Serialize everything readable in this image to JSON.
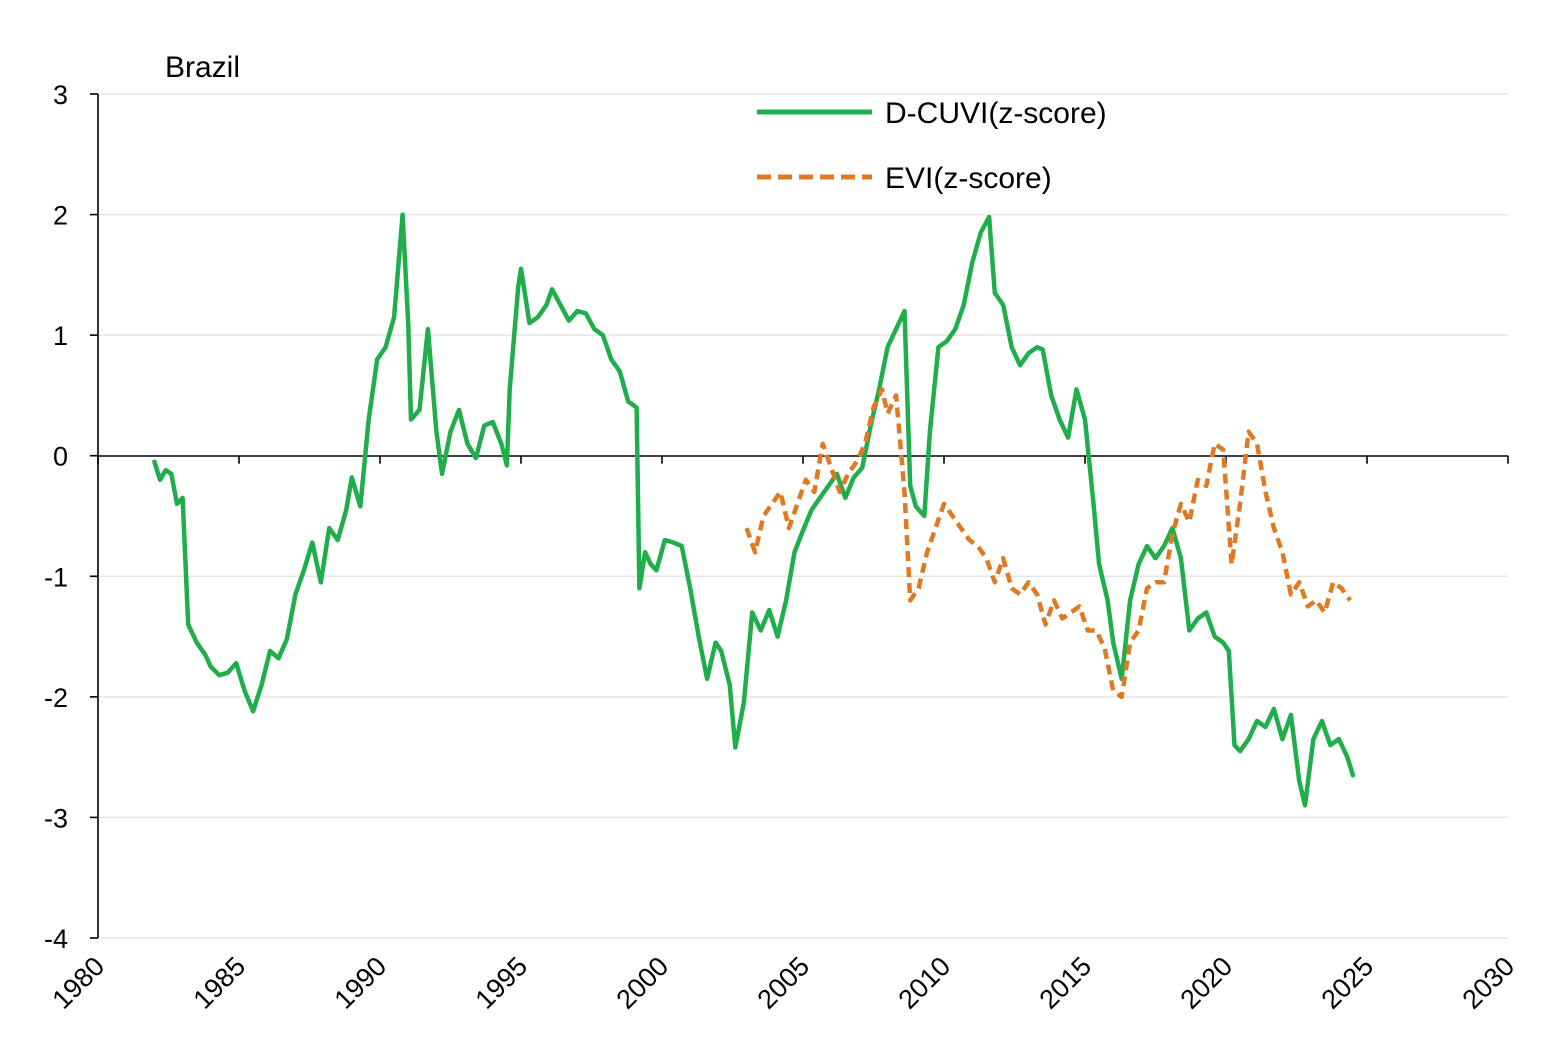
{
  "chart_data": {
    "type": "line",
    "title": "Brazil",
    "xlabel": "",
    "ylabel": "",
    "xlim": [
      1980,
      2030
    ],
    "ylim": [
      -4,
      3
    ],
    "x_ticks": [
      "1980",
      "1985",
      "1990",
      "1995",
      "2000",
      "2005",
      "2010",
      "2015",
      "2020",
      "2025",
      "2030"
    ],
    "y_ticks": [
      "3",
      "2",
      "1",
      "0",
      "-1",
      "-2",
      "-3",
      "-4"
    ],
    "grid": "horizontal",
    "legend": "top-center",
    "series": [
      {
        "name": "D-CUVI(z-score)",
        "color": "#1fae4b",
        "style": "solid",
        "points": [
          [
            1982.0,
            -0.05
          ],
          [
            1982.2,
            -0.2
          ],
          [
            1982.4,
            -0.12
          ],
          [
            1982.6,
            -0.15
          ],
          [
            1982.8,
            -0.4
          ],
          [
            1983.0,
            -0.35
          ],
          [
            1983.2,
            -1.4
          ],
          [
            1983.5,
            -1.55
          ],
          [
            1983.8,
            -1.65
          ],
          [
            1984.0,
            -1.75
          ],
          [
            1984.3,
            -1.82
          ],
          [
            1984.6,
            -1.8
          ],
          [
            1984.9,
            -1.72
          ],
          [
            1985.2,
            -1.95
          ],
          [
            1985.5,
            -2.12
          ],
          [
            1985.8,
            -1.9
          ],
          [
            1986.1,
            -1.62
          ],
          [
            1986.4,
            -1.68
          ],
          [
            1986.7,
            -1.52
          ],
          [
            1987.0,
            -1.15
          ],
          [
            1987.3,
            -0.95
          ],
          [
            1987.6,
            -0.72
          ],
          [
            1987.9,
            -1.05
          ],
          [
            1988.2,
            -0.6
          ],
          [
            1988.5,
            -0.7
          ],
          [
            1988.8,
            -0.45
          ],
          [
            1989.0,
            -0.18
          ],
          [
            1989.3,
            -0.42
          ],
          [
            1989.6,
            0.3
          ],
          [
            1989.9,
            0.8
          ],
          [
            1990.2,
            0.9
          ],
          [
            1990.5,
            1.15
          ],
          [
            1990.8,
            2.0
          ],
          [
            1991.0,
            1.1
          ],
          [
            1991.1,
            0.3
          ],
          [
            1991.4,
            0.38
          ],
          [
            1991.7,
            1.05
          ],
          [
            1992.0,
            0.2
          ],
          [
            1992.2,
            -0.15
          ],
          [
            1992.5,
            0.2
          ],
          [
            1992.8,
            0.38
          ],
          [
            1993.1,
            0.1
          ],
          [
            1993.4,
            -0.02
          ],
          [
            1993.7,
            0.25
          ],
          [
            1994.0,
            0.28
          ],
          [
            1994.3,
            0.1
          ],
          [
            1994.5,
            -0.08
          ],
          [
            1994.6,
            0.55
          ],
          [
            1994.9,
            1.4
          ],
          [
            1995.0,
            1.55
          ],
          [
            1995.3,
            1.1
          ],
          [
            1995.6,
            1.15
          ],
          [
            1995.9,
            1.25
          ],
          [
            1996.1,
            1.38
          ],
          [
            1996.4,
            1.25
          ],
          [
            1996.7,
            1.12
          ],
          [
            1997.0,
            1.2
          ],
          [
            1997.3,
            1.18
          ],
          [
            1997.6,
            1.05
          ],
          [
            1997.9,
            1.0
          ],
          [
            1998.2,
            0.8
          ],
          [
            1998.5,
            0.7
          ],
          [
            1998.8,
            0.45
          ],
          [
            1999.1,
            0.4
          ],
          [
            1999.2,
            -1.1
          ],
          [
            1999.4,
            -0.8
          ],
          [
            1999.6,
            -0.9
          ],
          [
            1999.8,
            -0.95
          ],
          [
            2000.1,
            -0.7
          ],
          [
            2000.4,
            -0.72
          ],
          [
            2000.7,
            -0.75
          ],
          [
            2001.0,
            -1.1
          ],
          [
            2001.3,
            -1.5
          ],
          [
            2001.6,
            -1.85
          ],
          [
            2001.9,
            -1.55
          ],
          [
            2002.1,
            -1.62
          ],
          [
            2002.4,
            -1.9
          ],
          [
            2002.6,
            -2.42
          ],
          [
            2002.9,
            -2.05
          ],
          [
            2003.2,
            -1.3
          ],
          [
            2003.5,
            -1.45
          ],
          [
            2003.8,
            -1.28
          ],
          [
            2004.1,
            -1.5
          ],
          [
            2004.4,
            -1.2
          ],
          [
            2004.7,
            -0.8
          ],
          [
            2005.0,
            -0.62
          ],
          [
            2005.3,
            -0.45
          ],
          [
            2005.6,
            -0.35
          ],
          [
            2005.9,
            -0.25
          ],
          [
            2006.2,
            -0.15
          ],
          [
            2006.5,
            -0.35
          ],
          [
            2006.8,
            -0.18
          ],
          [
            2007.1,
            -0.1
          ],
          [
            2007.4,
            0.25
          ],
          [
            2007.7,
            0.55
          ],
          [
            2008.0,
            0.9
          ],
          [
            2008.3,
            1.05
          ],
          [
            2008.6,
            1.2
          ],
          [
            2008.8,
            -0.25
          ],
          [
            2009.0,
            -0.42
          ],
          [
            2009.3,
            -0.5
          ],
          [
            2009.5,
            0.2
          ],
          [
            2009.8,
            0.9
          ],
          [
            2010.1,
            0.95
          ],
          [
            2010.4,
            1.05
          ],
          [
            2010.7,
            1.25
          ],
          [
            2011.0,
            1.6
          ],
          [
            2011.3,
            1.85
          ],
          [
            2011.6,
            1.98
          ],
          [
            2011.8,
            1.35
          ],
          [
            2012.1,
            1.25
          ],
          [
            2012.4,
            0.9
          ],
          [
            2012.7,
            0.75
          ],
          [
            2013.0,
            0.85
          ],
          [
            2013.3,
            0.9
          ],
          [
            2013.5,
            0.88
          ],
          [
            2013.8,
            0.5
          ],
          [
            2014.1,
            0.3
          ],
          [
            2014.4,
            0.15
          ],
          [
            2014.7,
            0.55
          ],
          [
            2015.0,
            0.3
          ],
          [
            2015.3,
            -0.4
          ],
          [
            2015.5,
            -0.9
          ],
          [
            2015.8,
            -1.2
          ],
          [
            2016.0,
            -1.55
          ],
          [
            2016.3,
            -1.85
          ],
          [
            2016.6,
            -1.2
          ],
          [
            2016.9,
            -0.9
          ],
          [
            2017.2,
            -0.75
          ],
          [
            2017.5,
            -0.85
          ],
          [
            2017.8,
            -0.75
          ],
          [
            2018.1,
            -0.6
          ],
          [
            2018.4,
            -0.85
          ],
          [
            2018.7,
            -1.45
          ],
          [
            2019.0,
            -1.35
          ],
          [
            2019.3,
            -1.3
          ],
          [
            2019.6,
            -1.5
          ],
          [
            2019.9,
            -1.55
          ],
          [
            2020.1,
            -1.62
          ],
          [
            2020.3,
            -2.4
          ],
          [
            2020.5,
            -2.45
          ],
          [
            2020.8,
            -2.35
          ],
          [
            2021.1,
            -2.2
          ],
          [
            2021.4,
            -2.25
          ],
          [
            2021.7,
            -2.1
          ],
          [
            2022.0,
            -2.35
          ],
          [
            2022.3,
            -2.15
          ],
          [
            2022.6,
            -2.7
          ],
          [
            2022.8,
            -2.9
          ],
          [
            2023.1,
            -2.35
          ],
          [
            2023.4,
            -2.2
          ],
          [
            2023.7,
            -2.4
          ],
          [
            2024.0,
            -2.35
          ],
          [
            2024.3,
            -2.5
          ],
          [
            2024.5,
            -2.65
          ]
        ]
      },
      {
        "name": "EVI(z-score)",
        "color": "#e07a22",
        "style": "dashed",
        "points": [
          [
            2003.0,
            -0.6
          ],
          [
            2003.3,
            -0.8
          ],
          [
            2003.6,
            -0.5
          ],
          [
            2003.9,
            -0.4
          ],
          [
            2004.2,
            -0.3
          ],
          [
            2004.5,
            -0.6
          ],
          [
            2004.8,
            -0.4
          ],
          [
            2005.1,
            -0.2
          ],
          [
            2005.4,
            -0.3
          ],
          [
            2005.7,
            0.1
          ],
          [
            2006.0,
            -0.1
          ],
          [
            2006.3,
            -0.3
          ],
          [
            2006.6,
            -0.15
          ],
          [
            2006.9,
            -0.05
          ],
          [
            2007.2,
            0.1
          ],
          [
            2007.5,
            0.4
          ],
          [
            2007.8,
            0.55
          ],
          [
            2008.0,
            0.35
          ],
          [
            2008.3,
            0.5
          ],
          [
            2008.6,
            -0.3
          ],
          [
            2008.8,
            -1.2
          ],
          [
            2009.1,
            -1.1
          ],
          [
            2009.4,
            -0.8
          ],
          [
            2009.7,
            -0.6
          ],
          [
            2010.0,
            -0.4
          ],
          [
            2010.3,
            -0.5
          ],
          [
            2010.6,
            -0.6
          ],
          [
            2010.9,
            -0.7
          ],
          [
            2011.2,
            -0.75
          ],
          [
            2011.5,
            -0.85
          ],
          [
            2011.8,
            -1.05
          ],
          [
            2012.1,
            -0.85
          ],
          [
            2012.4,
            -1.1
          ],
          [
            2012.7,
            -1.15
          ],
          [
            2013.0,
            -1.05
          ],
          [
            2013.3,
            -1.15
          ],
          [
            2013.6,
            -1.4
          ],
          [
            2013.9,
            -1.2
          ],
          [
            2014.2,
            -1.35
          ],
          [
            2014.5,
            -1.3
          ],
          [
            2014.8,
            -1.25
          ],
          [
            2015.1,
            -1.45
          ],
          [
            2015.4,
            -1.45
          ],
          [
            2015.7,
            -1.6
          ],
          [
            2016.0,
            -1.95
          ],
          [
            2016.3,
            -2.0
          ],
          [
            2016.6,
            -1.55
          ],
          [
            2016.9,
            -1.45
          ],
          [
            2017.2,
            -1.1
          ],
          [
            2017.5,
            -1.05
          ],
          [
            2017.8,
            -1.05
          ],
          [
            2018.1,
            -0.65
          ],
          [
            2018.4,
            -0.4
          ],
          [
            2018.7,
            -0.55
          ],
          [
            2019.0,
            -0.2
          ],
          [
            2019.3,
            -0.25
          ],
          [
            2019.6,
            0.1
          ],
          [
            2019.9,
            0.05
          ],
          [
            2020.2,
            -0.9
          ],
          [
            2020.5,
            -0.4
          ],
          [
            2020.8,
            0.2
          ],
          [
            2021.1,
            0.1
          ],
          [
            2021.4,
            -0.3
          ],
          [
            2021.7,
            -0.6
          ],
          [
            2022.0,
            -0.8
          ],
          [
            2022.3,
            -1.15
          ],
          [
            2022.6,
            -1.05
          ],
          [
            2022.9,
            -1.25
          ],
          [
            2023.2,
            -1.2
          ],
          [
            2023.5,
            -1.3
          ],
          [
            2023.8,
            -1.05
          ],
          [
            2024.1,
            -1.1
          ],
          [
            2024.4,
            -1.2
          ]
        ]
      }
    ]
  }
}
